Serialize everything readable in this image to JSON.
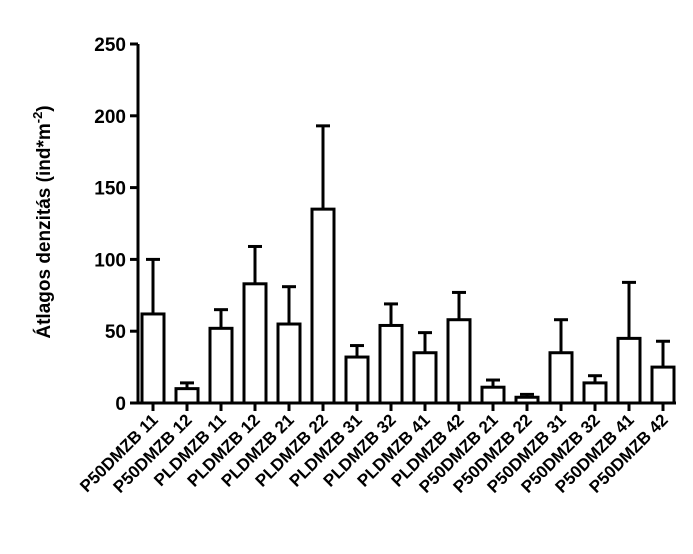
{
  "chart_data": {
    "type": "bar",
    "y_label": "Átlagos denzitás (ind*m",
    "y_label_sup": "-2",
    "y_label_end": ")",
    "categories": [
      "P50DMZB 11",
      "P50DMZB 12",
      "PLDMZB 11",
      "PLDMZB 12",
      "PLDMZB 21",
      "PLDMZB 22",
      "PLDMZB 31",
      "PLDMZB 32",
      "PLDMZB 41",
      "PLDMZB 42",
      "P50DMZB 21",
      "P50DMZB 22",
      "P50DMZB 31",
      "P50DMZB 32",
      "P50DMZB 41",
      "P50DMZB 42"
    ],
    "values": [
      62,
      10,
      52,
      83,
      55,
      135,
      32,
      54,
      35,
      58,
      11,
      4,
      35,
      14,
      45,
      25
    ],
    "errors": [
      38,
      4,
      13,
      26,
      26,
      58,
      8,
      15,
      14,
      19,
      5,
      2,
      23,
      5,
      39,
      18
    ],
    "color": "#ffffff",
    "ylim": [
      0,
      250
    ],
    "yticks": [
      0,
      50,
      100,
      150,
      200,
      250
    ]
  }
}
